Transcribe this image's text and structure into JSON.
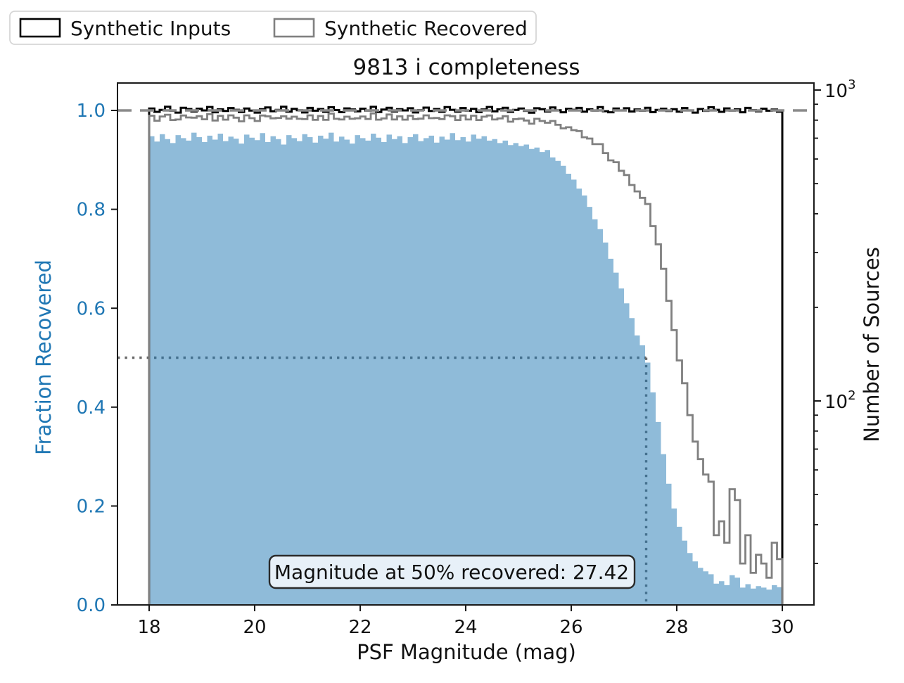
{
  "figure_title": "9813 i completeness",
  "legend": {
    "items": [
      {
        "label": "Synthetic Inputs",
        "edge_color": "#000000"
      },
      {
        "label": "Synthetic Recovered",
        "edge_color": "#808080"
      }
    ]
  },
  "annotation": {
    "text": "Magnitude at 50% recovered: 27.42",
    "mag_50_percent": 27.42
  },
  "axes": {
    "x": {
      "label": "PSF Magnitude (mag)",
      "tick_values": [
        18,
        20,
        22,
        24,
        26,
        28,
        30
      ],
      "tick_labels": [
        "18",
        "20",
        "22",
        "24",
        "26",
        "28",
        "30"
      ]
    },
    "y_left": {
      "label": "Fraction Recovered",
      "color": "#1f77b4",
      "tick_values": [
        0.0,
        0.2,
        0.4,
        0.6,
        0.8,
        1.0
      ],
      "tick_labels": [
        "0.0",
        "0.2",
        "0.4",
        "0.6",
        "0.8",
        "1.0"
      ]
    },
    "y_right": {
      "label": "Number of Sources",
      "major_ticks": [
        {
          "value": 1000,
          "label_base": "10",
          "label_exponent": "3"
        },
        {
          "value": 100,
          "label_base": "10",
          "label_exponent": "2"
        }
      ]
    }
  },
  "colors": {
    "fill_blue": "#1f77b4",
    "fill_blue_opacity": 0.5,
    "inputs_line": "#000000",
    "recovered_line": "#808080",
    "dashed_reference": "#8a8a8a",
    "dotted_reference": "#6a6a6a",
    "spine": "#1a1a1a",
    "annotation_bg": "#e7f0f8",
    "annotation_border": "#2b2b2b",
    "legend_border": "#d6d6d6",
    "left_axis_text": "#1f77b4"
  },
  "chart_data": {
    "type": "bar",
    "subtype": "step-histograms with filled fraction histogram",
    "title": "9813 i completeness",
    "xlabel": "PSF Magnitude (mag)",
    "ylabel_left": "Fraction Recovered",
    "ylabel_right": "Number of Sources",
    "xlim": [
      17.4,
      30.6
    ],
    "ylim_left": [
      0.0,
      1.056
    ],
    "ylim_right_log": [
      22,
      1053
    ],
    "y_right_scale": "log",
    "grid": false,
    "legend_position": "upper-left outside axes",
    "mag_start": 18.0,
    "mag_end": 30.0,
    "bin_width": 0.1,
    "reference_lines": {
      "dashed_fraction": 1.0,
      "dotted_fraction": 0.5,
      "dotted_magnitude": 27.42
    },
    "series_notes": "inputs_counts = black step (right log axis); fraction_recovered = blue filled step (left axis); Synthetic Recovered gray step = inputs_counts x fraction_recovered",
    "inputs_counts": [
      872,
      851,
      863,
      884,
      858,
      846,
      877,
      869,
      853,
      871,
      860,
      882,
      848,
      867,
      856,
      875,
      864,
      850,
      872,
      859,
      846,
      868,
      879,
      855,
      863,
      884,
      852,
      870,
      861,
      847,
      876,
      858,
      869,
      851,
      880,
      862,
      849,
      873,
      866,
      854,
      871,
      859,
      883,
      850,
      865,
      877,
      853,
      868,
      860,
      874,
      847,
      862,
      878,
      856,
      869,
      851,
      881,
      864,
      852,
      875,
      858,
      870,
      849,
      866,
      882,
      854,
      867,
      877,
      851,
      863,
      872,
      857,
      845,
      874,
      868,
      853,
      879,
      861,
      848,
      870,
      864,
      876,
      852,
      867,
      859,
      881,
      855,
      848,
      872,
      860,
      874,
      853,
      866,
      858,
      877,
      849,
      863,
      871,
      856,
      868,
      852,
      875,
      860,
      846,
      869,
      857,
      880,
      864,
      851,
      873,
      859,
      867,
      848,
      876,
      862,
      854,
      871,
      858,
      865,
      852
    ],
    "fraction_recovered": [
      0.948,
      0.937,
      0.952,
      0.942,
      0.934,
      0.95,
      0.944,
      0.939,
      0.955,
      0.946,
      0.936,
      0.949,
      0.941,
      0.953,
      0.938,
      0.947,
      0.943,
      0.933,
      0.951,
      0.945,
      0.94,
      0.954,
      0.936,
      0.948,
      0.942,
      0.931,
      0.95,
      0.944,
      0.938,
      0.952,
      0.946,
      0.935,
      0.949,
      0.943,
      0.955,
      0.937,
      0.947,
      0.941,
      0.933,
      0.95,
      0.944,
      0.939,
      0.953,
      0.945,
      0.936,
      0.951,
      0.942,
      0.948,
      0.934,
      0.946,
      0.952,
      0.938,
      0.944,
      0.949,
      0.935,
      0.947,
      0.941,
      0.954,
      0.94,
      0.946,
      0.937,
      0.951,
      0.943,
      0.948,
      0.939,
      0.942,
      0.934,
      0.939,
      0.93,
      0.934,
      0.928,
      0.931,
      0.922,
      0.925,
      0.916,
      0.92,
      0.905,
      0.898,
      0.888,
      0.872,
      0.86,
      0.842,
      0.828,
      0.805,
      0.78,
      0.76,
      0.733,
      0.7,
      0.672,
      0.64,
      0.61,
      0.58,
      0.545,
      0.525,
      0.49,
      0.43,
      0.37,
      0.305,
      0.245,
      0.195,
      0.158,
      0.13,
      0.105,
      0.088,
      0.075,
      0.068,
      0.062,
      0.043,
      0.048,
      0.04,
      0.06,
      0.055,
      0.035,
      0.042,
      0.033,
      0.038,
      0.035,
      0.031,
      0.04,
      0.036
    ]
  }
}
